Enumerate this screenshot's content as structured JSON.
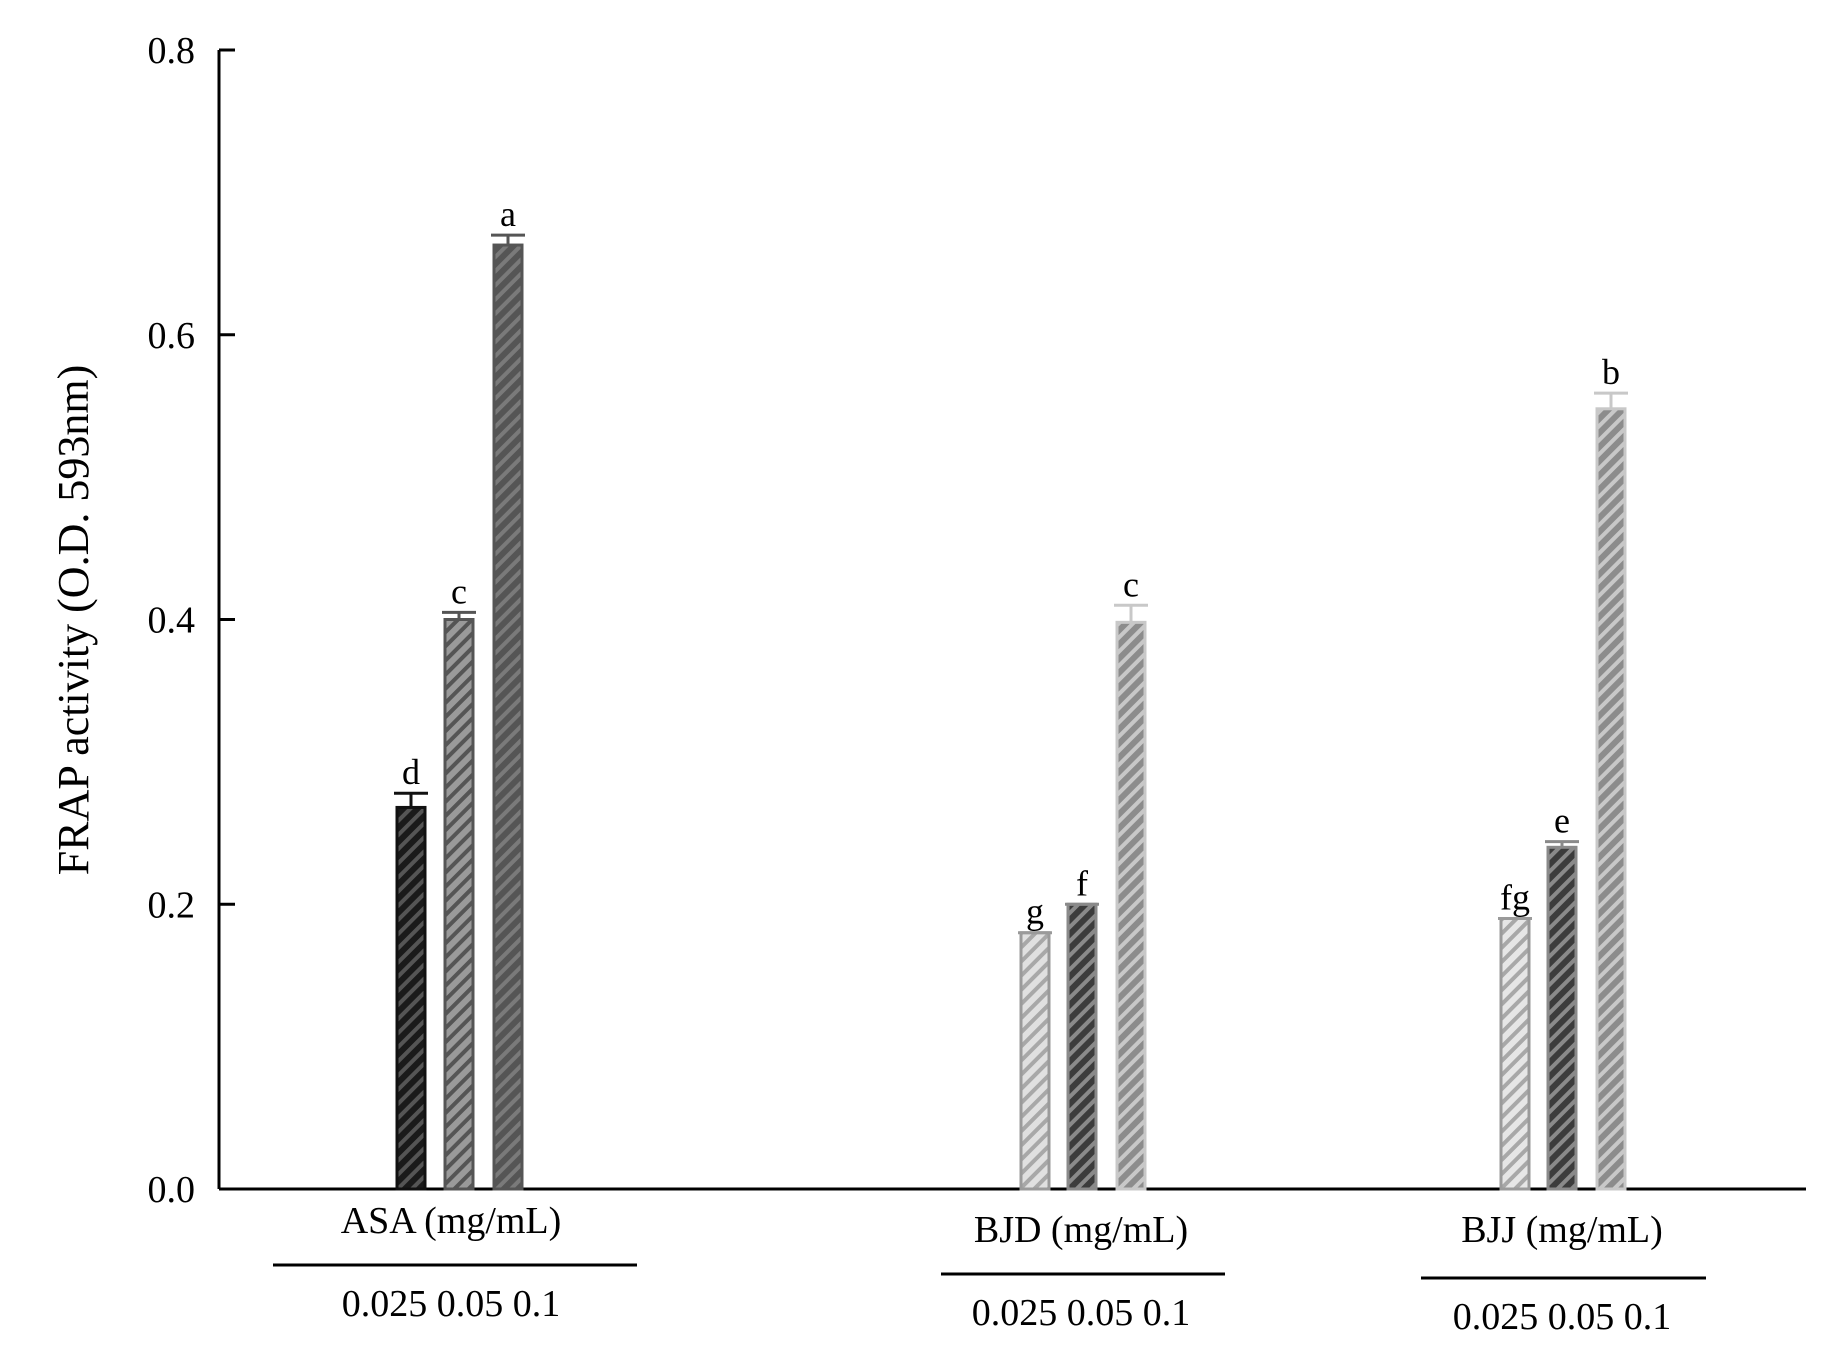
{
  "chart_data": {
    "type": "bar",
    "title": "",
    "xlabel": "",
    "ylabel": "FRAP activity (O.D. 593nm)",
    "ylim": [
      0,
      0.8
    ],
    "yticks": [
      "0.0",
      "0.2",
      "0.4",
      "0.6",
      "0.8"
    ],
    "grid": false,
    "groups": [
      {
        "name": "ASA (mg/mL)",
        "concentrations_label": "0.025 0.05 0.1",
        "bars": [
          {
            "concentration": "0.025",
            "value": 0.268,
            "error": 0.01,
            "letter": "d",
            "fill": "#1a1a1a",
            "stripe": "#555555",
            "stroke": "#111111"
          },
          {
            "concentration": "0.05",
            "value": 0.4,
            "error": 0.005,
            "letter": "c",
            "fill": "#9a9a9a",
            "stripe": "#555555",
            "stroke": "#555555"
          },
          {
            "concentration": "0.1",
            "value": 0.663,
            "error": 0.007,
            "letter": "a",
            "fill": "#555555",
            "stripe": "#7a7a7a",
            "stroke": "#555555"
          }
        ]
      },
      {
        "name": "BJD (mg/mL)",
        "concentrations_label": "0.025 0.05 0.1",
        "bars": [
          {
            "concentration": "0.025",
            "value": 0.18,
            "error": 0.0,
            "letter": "g",
            "fill": "#e0e0e0",
            "stripe": "#a8a8a8",
            "stroke": "#9a9a9a"
          },
          {
            "concentration": "0.05",
            "value": 0.2,
            "error": 0.0,
            "letter": "f",
            "fill": "#3c3c3c",
            "stripe": "#8a8a8a",
            "stroke": "#8a8a8a"
          },
          {
            "concentration": "0.1",
            "value": 0.398,
            "error": 0.012,
            "letter": "c",
            "fill": "#8c8c8c",
            "stripe": "#c8c8c8",
            "stroke": "#c8c8c8"
          }
        ]
      },
      {
        "name": "BJJ (mg/mL)",
        "concentrations_label": "0.025 0.05 0.1",
        "bars": [
          {
            "concentration": "0.025",
            "value": 0.19,
            "error": 0.0,
            "letter": "fg",
            "fill": "#e6e6e6",
            "stripe": "#a8a8a8",
            "stroke": "#9a9a9a"
          },
          {
            "concentration": "0.05",
            "value": 0.24,
            "error": 0.004,
            "letter": "e",
            "fill": "#3c3c3c",
            "stripe": "#8a8a8a",
            "stroke": "#8a8a8a"
          },
          {
            "concentration": "0.1",
            "value": 0.548,
            "error": 0.011,
            "letter": "b",
            "fill": "#8c8c8c",
            "stripe": "#c8c8c8",
            "stroke": "#c8c8c8"
          }
        ]
      }
    ]
  }
}
